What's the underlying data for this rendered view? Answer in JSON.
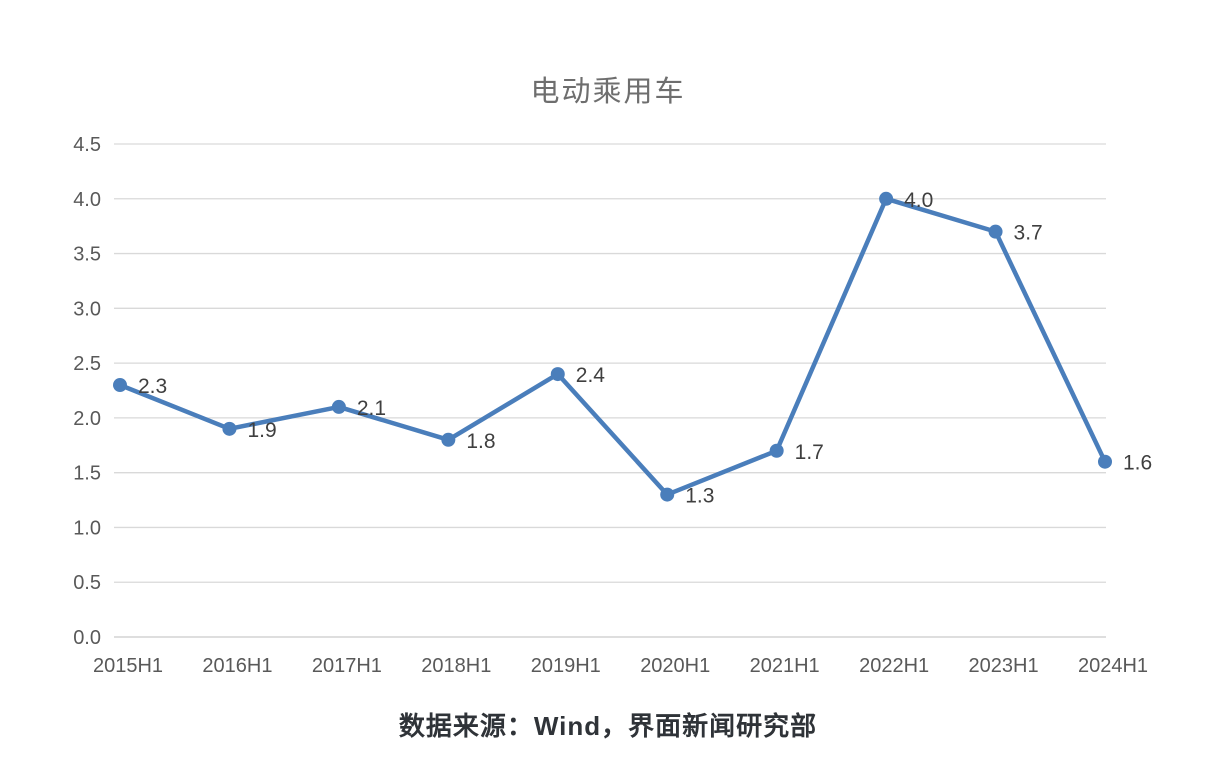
{
  "page": {
    "caption": "数据来源：Wind，界面新闻研究部"
  },
  "chart_data": {
    "type": "line",
    "title": "电动乘用车",
    "categories": [
      "2015H1",
      "2016H1",
      "2017H1",
      "2018H1",
      "2019H1",
      "2020H1",
      "2021H1",
      "2022H1",
      "2023H1",
      "2024H1"
    ],
    "values": [
      2.3,
      1.9,
      2.1,
      1.8,
      2.4,
      1.3,
      1.7,
      4.0,
      3.7,
      1.6
    ],
    "data_labels": [
      "2.3",
      "1.9",
      "2.1",
      "1.8",
      "2.4",
      "1.3",
      "1.7",
      "4.0",
      "3.7",
      "1.6"
    ],
    "xlabel": "",
    "ylabel": "",
    "ylim": [
      0.0,
      4.5
    ],
    "ytick_step": 0.5,
    "ytick_labels": [
      "0.0",
      "0.5",
      "1.0",
      "1.5",
      "2.0",
      "2.5",
      "3.0",
      "3.5",
      "4.0",
      "4.5"
    ],
    "grid": true,
    "legend_position": "none",
    "colors": {
      "line": "#4A7EBB",
      "marker": "#4A7EBB",
      "gridline": "#D9D9D9",
      "axis_line": "#C9C9C9",
      "axis_text": "#595959",
      "data_label": "#3F3F3F",
      "title": "#6E6E6E",
      "background": "#FFFFFF"
    }
  }
}
